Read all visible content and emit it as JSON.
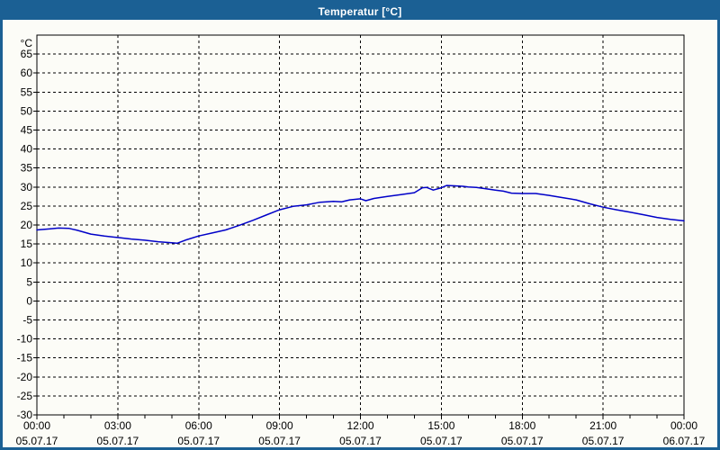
{
  "window": {
    "title": "Temperatur [°C]"
  },
  "colors": {
    "titlebar_bg": "#1B6094",
    "titlebar_text": "#FFFFFF",
    "window_border": "#1B6094",
    "content_bg": "#FCFCF7",
    "axis": "#000000",
    "grid": "#000000",
    "line": "#0000C8"
  },
  "chart_data": {
    "type": "line",
    "title": "Temperatur [°C]",
    "ylabel": "°C",
    "xlabel": "",
    "xlim": [
      0,
      24
    ],
    "ylim": [
      -30,
      70
    ],
    "grid": "dashed",
    "legend": "none",
    "y_ticks": [
      -30,
      -25,
      -20,
      -15,
      -10,
      -5,
      0,
      5,
      10,
      15,
      20,
      25,
      30,
      35,
      40,
      45,
      50,
      55,
      60,
      65
    ],
    "x_minor_step_hours": 1,
    "x_ticks": [
      {
        "hour": 0,
        "time": "00:00",
        "date": "05.07.17"
      },
      {
        "hour": 3,
        "time": "03:00",
        "date": "05.07.17"
      },
      {
        "hour": 6,
        "time": "06:00",
        "date": "05.07.17"
      },
      {
        "hour": 9,
        "time": "09:00",
        "date": "05.07.17"
      },
      {
        "hour": 12,
        "time": "12:00",
        "date": "05.07.17"
      },
      {
        "hour": 15,
        "time": "15:00",
        "date": "05.07.17"
      },
      {
        "hour": 18,
        "time": "18:00",
        "date": "05.07.17"
      },
      {
        "hour": 21,
        "time": "21:00",
        "date": "05.07.17"
      },
      {
        "hour": 24,
        "time": "00:00",
        "date": "06.07.17"
      }
    ],
    "series": [
      {
        "name": "Temperatur",
        "color": "#0000C8",
        "x_hours": [
          0,
          0.5,
          0.8,
          1.2,
          1.5,
          2,
          2.5,
          3,
          3.5,
          4,
          4.5,
          5,
          5.2,
          5.5,
          6,
          6.5,
          7,
          7.5,
          8,
          8.5,
          9,
          9.5,
          10,
          10.5,
          11,
          11.3,
          11.6,
          12,
          12.2,
          12.5,
          13,
          13.5,
          14,
          14.3,
          14.45,
          14.7,
          15,
          15.2,
          15.5,
          15.8,
          16,
          16.3,
          16.6,
          17,
          17.3,
          17.6,
          18,
          18.5,
          19,
          19.5,
          20,
          20.5,
          21,
          21.5,
          22,
          22.5,
          23,
          23.5,
          24
        ],
        "values": [
          18.7,
          19.0,
          19.2,
          19.1,
          18.6,
          17.6,
          17.1,
          16.7,
          16.3,
          16.0,
          15.6,
          15.3,
          15.2,
          16.0,
          17.1,
          17.9,
          18.7,
          19.9,
          21.2,
          22.6,
          24.0,
          24.9,
          25.3,
          26.0,
          26.2,
          26.1,
          26.6,
          26.9,
          26.4,
          27.0,
          27.5,
          28.0,
          28.5,
          29.8,
          29.9,
          29.2,
          29.8,
          30.4,
          30.3,
          30.2,
          30.0,
          29.9,
          29.6,
          29.2,
          28.9,
          28.4,
          28.3,
          28.3,
          27.8,
          27.2,
          26.6,
          25.6,
          24.7,
          24.0,
          23.4,
          22.7,
          22.0,
          21.5,
          21.1
        ]
      }
    ]
  }
}
